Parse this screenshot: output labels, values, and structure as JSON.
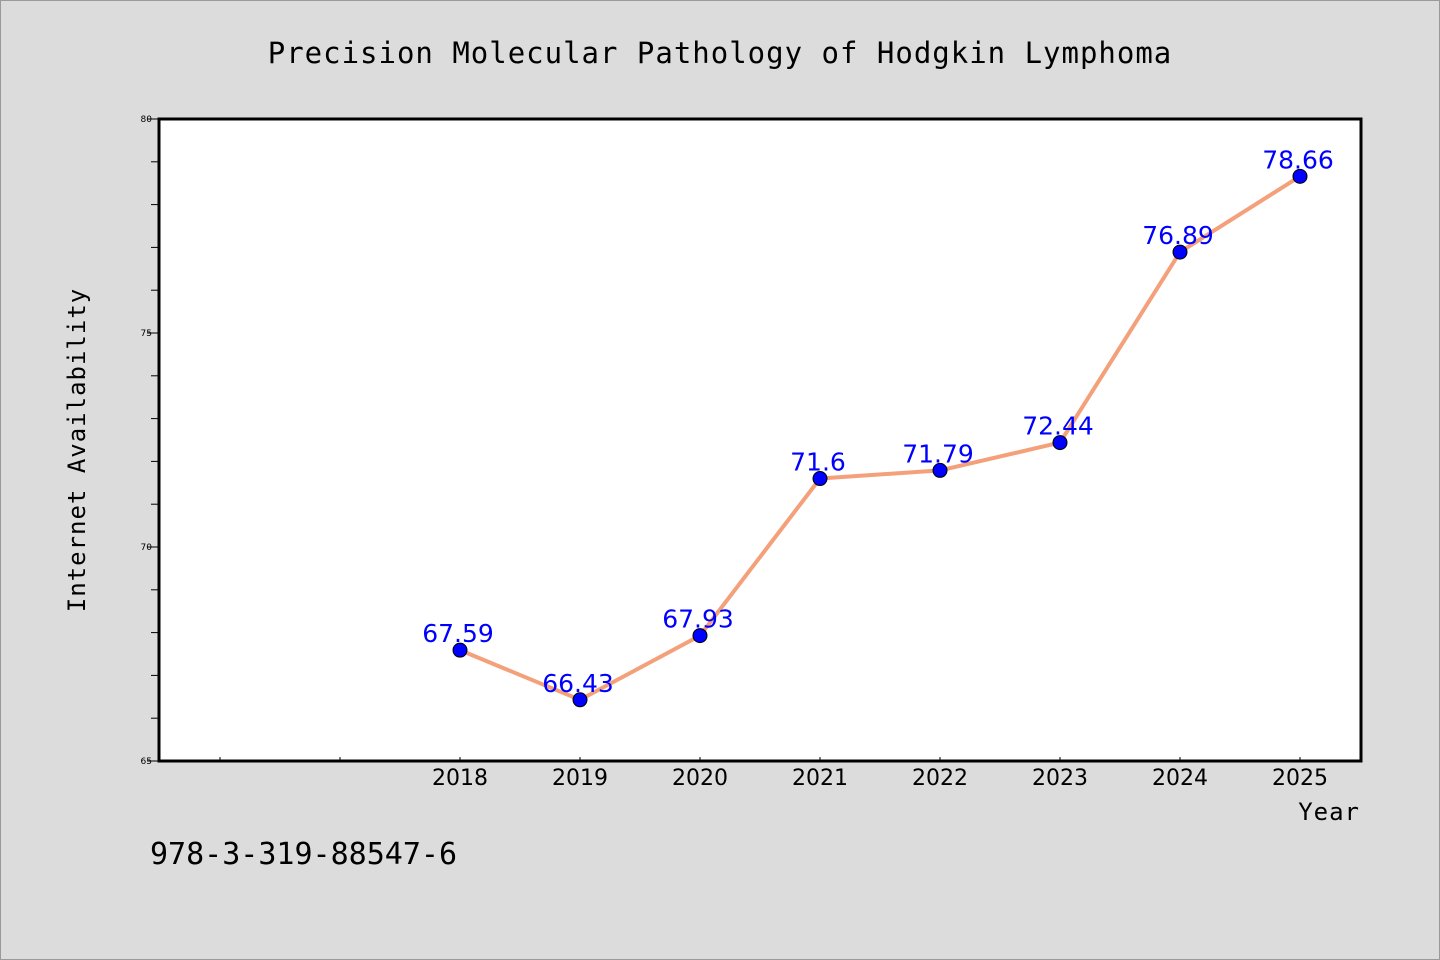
{
  "chart_data": {
    "type": "line",
    "title": "Precision Molecular Pathology of Hodgkin Lymphoma",
    "xlabel": "Year",
    "ylabel": "Internet Availability",
    "categories": [
      "2018",
      "2019",
      "2020",
      "2021",
      "2022",
      "2023",
      "2024",
      "2025"
    ],
    "series": [
      {
        "values": [
          67.59,
          66.43,
          67.93,
          71.6,
          71.79,
          72.44,
          76.89,
          78.66
        ],
        "data_labels": [
          "67.59",
          "66.43",
          "67.93",
          "71.6",
          "71.79",
          "72.44",
          "76.89",
          "78.66"
        ],
        "line_color": "#f4a07a",
        "marker_color": "#0000ff"
      }
    ],
    "ylim": [
      65,
      80
    ],
    "y_ticks": [
      "65",
      "70",
      "75",
      "80"
    ],
    "grid": false,
    "legend": "none"
  },
  "footer": {
    "isbn": "978-3-319-88547-6"
  },
  "colors": {
    "background": "#dcdcdc",
    "plot_background": "#ffffff",
    "line": "#f4a07a",
    "marker": "#0000ff",
    "data_label": "#0000ff"
  }
}
